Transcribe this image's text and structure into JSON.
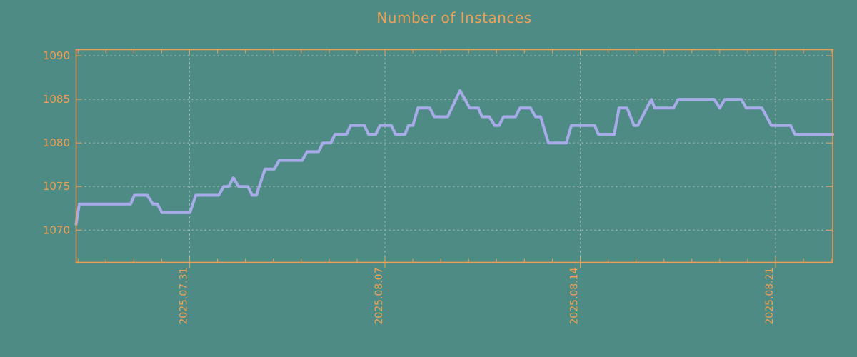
{
  "colors": {
    "background": "#4e8b85",
    "accent_orange": "#f0a155",
    "border_orange": "#ec9f56",
    "line": "#a7ace9",
    "grid": "#b7c4c0"
  },
  "chart_data": {
    "type": "line",
    "title": "Number of Instances",
    "xlabel": "",
    "ylabel": "",
    "legend": null,
    "grid": true,
    "x_unit": "days relative to 2025.07.31 (weekly labeled ticks, daily minor ticks)",
    "xlim": [
      -4.069,
      23.047
    ],
    "ylim": [
      1066.3,
      1090.7
    ],
    "y_ticks": [
      1070,
      1075,
      1080,
      1085,
      1090
    ],
    "x_major_ticks": [
      {
        "pos": 0,
        "label": "2025.07.31"
      },
      {
        "pos": 7,
        "label": "2025.08.07"
      },
      {
        "pos": 14,
        "label": "2025.08.14"
      },
      {
        "pos": 21,
        "label": "2025.08.21"
      }
    ],
    "x_minor_tick_positions": [
      -4,
      -3,
      -2,
      -1,
      1,
      2,
      3,
      4,
      5,
      6,
      8,
      9,
      10,
      11,
      12,
      13,
      15,
      16,
      17,
      18,
      19,
      20,
      22,
      23
    ],
    "points": [
      [
        -4.07,
        1070.7
      ],
      [
        -3.95,
        1073
      ],
      [
        -2.11,
        1073
      ],
      [
        -1.98,
        1074
      ],
      [
        -1.52,
        1074
      ],
      [
        -1.32,
        1073
      ],
      [
        -1.16,
        1073
      ],
      [
        -0.99,
        1072
      ],
      [
        0.01,
        1072
      ],
      [
        0.22,
        1074
      ],
      [
        1.04,
        1074
      ],
      [
        1.22,
        1075
      ],
      [
        1.4,
        1075
      ],
      [
        1.57,
        1076
      ],
      [
        1.75,
        1075
      ],
      [
        2.09,
        1075
      ],
      [
        2.24,
        1074
      ],
      [
        2.39,
        1074
      ],
      [
        2.7,
        1077
      ],
      [
        3.03,
        1077
      ],
      [
        3.21,
        1078
      ],
      [
        4.03,
        1078
      ],
      [
        4.21,
        1079
      ],
      [
        4.62,
        1079
      ],
      [
        4.77,
        1080
      ],
      [
        5.06,
        1080
      ],
      [
        5.21,
        1081
      ],
      [
        5.62,
        1081
      ],
      [
        5.77,
        1082
      ],
      [
        6.26,
        1082
      ],
      [
        6.41,
        1081
      ],
      [
        6.67,
        1081
      ],
      [
        6.82,
        1082
      ],
      [
        7.23,
        1082
      ],
      [
        7.38,
        1081
      ],
      [
        7.72,
        1081
      ],
      [
        7.84,
        1082
      ],
      [
        8.0,
        1082
      ],
      [
        8.18,
        1084
      ],
      [
        8.61,
        1084
      ],
      [
        8.77,
        1083
      ],
      [
        9.25,
        1083
      ],
      [
        9.69,
        1086
      ],
      [
        10.04,
        1084
      ],
      [
        10.35,
        1084
      ],
      [
        10.48,
        1083
      ],
      [
        10.74,
        1083
      ],
      [
        10.94,
        1082
      ],
      [
        11.09,
        1082
      ],
      [
        11.25,
        1083
      ],
      [
        11.68,
        1083
      ],
      [
        11.84,
        1084
      ],
      [
        12.22,
        1084
      ],
      [
        12.4,
        1083
      ],
      [
        12.58,
        1083
      ],
      [
        12.86,
        1080
      ],
      [
        13.5,
        1080
      ],
      [
        13.68,
        1082
      ],
      [
        14.52,
        1082
      ],
      [
        14.65,
        1081
      ],
      [
        15.22,
        1081
      ],
      [
        15.39,
        1084
      ],
      [
        15.68,
        1084
      ],
      [
        15.93,
        1082
      ],
      [
        16.06,
        1082
      ],
      [
        16.55,
        1085
      ],
      [
        16.67,
        1084
      ],
      [
        17.34,
        1084
      ],
      [
        17.52,
        1085
      ],
      [
        18.8,
        1085
      ],
      [
        19.0,
        1084
      ],
      [
        19.18,
        1085
      ],
      [
        19.77,
        1085
      ],
      [
        19.95,
        1084
      ],
      [
        20.51,
        1084
      ],
      [
        20.85,
        1082
      ],
      [
        21.54,
        1082
      ],
      [
        21.69,
        1081
      ],
      [
        23.05,
        1081
      ]
    ]
  }
}
